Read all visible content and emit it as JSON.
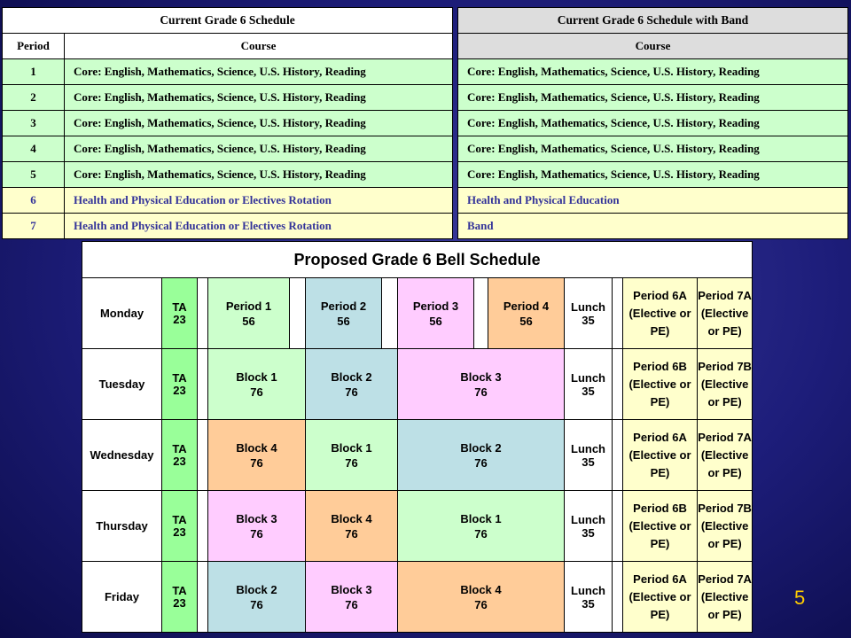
{
  "current": {
    "title": "Current Grade 6 Schedule",
    "col_period": "Period",
    "col_course": "Course",
    "rows": [
      {
        "period": "1",
        "course": "Core: English, Mathematics, Science, U.S. History, Reading"
      },
      {
        "period": "2",
        "course": "Core: English, Mathematics, Science, U.S. History, Reading"
      },
      {
        "period": "3",
        "course": "Core: English, Mathematics, Science, U.S. History, Reading"
      },
      {
        "period": "4",
        "course": "Core: English, Mathematics, Science, U.S. History, Reading"
      },
      {
        "period": "5",
        "course": "Core: English, Mathematics, Science, U.S. History, Reading"
      },
      {
        "period": "6",
        "course": "Health and Physical Education or Electives Rotation"
      },
      {
        "period": "7",
        "course": "Health and Physical Education or Electives Rotation"
      }
    ]
  },
  "band": {
    "title": "Current Grade 6 Schedule with Band",
    "col_course": "Course",
    "rows": [
      "Core: English, Mathematics, Science, U.S. History, Reading",
      "Core: English, Mathematics, Science, U.S. History, Reading",
      "Core: English, Mathematics, Science, U.S. History, Reading",
      "Core: English, Mathematics, Science, U.S. History, Reading",
      "Core: English, Mathematics, Science, U.S. History, Reading",
      "Health and Physical Education",
      "Band"
    ]
  },
  "bell": {
    "title": "Proposed Grade 6 Bell Schedule",
    "days": [
      {
        "day": "Monday",
        "ta": "TA",
        "ta_min": "23",
        "periods": [
          {
            "label": "Period 1",
            "min": "56"
          },
          {
            "label": "Period 2",
            "min": "56"
          },
          {
            "label": "Period 3",
            "min": "56"
          },
          {
            "label": "Period 4",
            "min": "56"
          }
        ],
        "lunch": "Lunch",
        "lunch_min": "35",
        "elec_a": "Period 6A (Elective or PE)",
        "elec_b": "Period 7A (Elective or PE)"
      },
      {
        "day": "Tuesday",
        "ta": "TA",
        "ta_min": "23",
        "blocks": [
          {
            "label": "Block 1",
            "min": "76"
          },
          {
            "label": "Block 2",
            "min": "76"
          },
          {
            "label": "Block 3",
            "min": "76"
          }
        ],
        "lunch": "Lunch",
        "lunch_min": "35",
        "elec_a": "Period 6B (Elective or PE)",
        "elec_b": "Period 7B (Elective or PE)"
      },
      {
        "day": "Wednesday",
        "ta": "TA",
        "ta_min": "23",
        "blocks": [
          {
            "label": "Block 4",
            "min": "76"
          },
          {
            "label": "Block 1",
            "min": "76"
          },
          {
            "label": "Block 2",
            "min": "76"
          }
        ],
        "lunch": "Lunch",
        "lunch_min": "35",
        "elec_a": "Period 6A (Elective or PE)",
        "elec_b": "Period 7A (Elective or PE)"
      },
      {
        "day": "Thursday",
        "ta": "TA",
        "ta_min": "23",
        "blocks": [
          {
            "label": "Block 3",
            "min": "76"
          },
          {
            "label": "Block 4",
            "min": "76"
          },
          {
            "label": "Block 1",
            "min": "76"
          }
        ],
        "lunch": "Lunch",
        "lunch_min": "35",
        "elec_a": "Period 6B (Elective or PE)",
        "elec_b": "Period 7B (Elective or PE)"
      },
      {
        "day": "Friday",
        "ta": "TA",
        "ta_min": "23",
        "blocks": [
          {
            "label": "Block 2",
            "min": "76"
          },
          {
            "label": "Block 3",
            "min": "76"
          },
          {
            "label": "Block 4",
            "min": "76"
          }
        ],
        "lunch": "Lunch",
        "lunch_min": "35",
        "elec_a": "Period 6A (Elective or PE)",
        "elec_b": "Period 7A (Elective or PE)"
      }
    ],
    "colors": {
      "green": "#ccffcc",
      "blue": "#bde0e6",
      "pink": "#ffccff",
      "orange": "#ffcc99",
      "ta": "#99ff99",
      "elective": "#ffffcc"
    }
  },
  "slide_number": "5"
}
